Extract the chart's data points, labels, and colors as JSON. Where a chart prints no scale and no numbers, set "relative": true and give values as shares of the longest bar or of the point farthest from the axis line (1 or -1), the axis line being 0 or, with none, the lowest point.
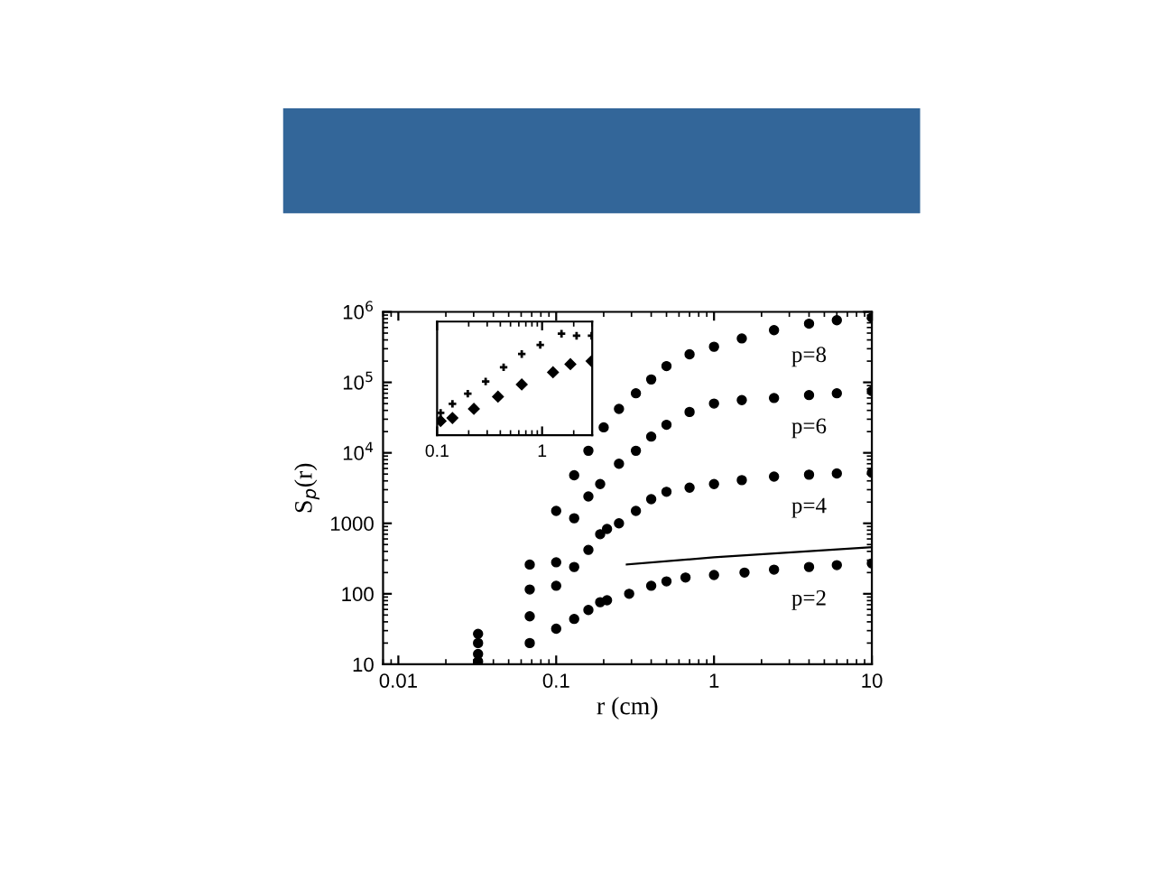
{
  "chart_data": [
    {
      "type": "scatter",
      "xlabel": "r (cm)",
      "ylabel": "S$_{p}$(r)",
      "log": "xy",
      "grid": false,
      "legend": "right",
      "xlim": [
        0.008,
        10
      ],
      "xticks": [
        0.01,
        0.1,
        1,
        10
      ],
      "ylim": [
        10,
        1000000
      ],
      "yticks": [
        10,
        100,
        1000,
        {
          "value": 10000,
          "label": "10$^{4}$"
        },
        {
          "value": 100000,
          "label": "10$^{5}$"
        },
        {
          "value": 1000000,
          "label": "10$^{6}$"
        }
      ],
      "series": [
        {
          "name": "p=2",
          "marker": "circle",
          "color": "#000000",
          "x": [
            0.032,
            0.068,
            0.1,
            0.13,
            0.16,
            0.19,
            0.21,
            0.29,
            0.4,
            0.5,
            0.66,
            1,
            1.56,
            2.4,
            4,
            6,
            10
          ],
          "values": [
            11,
            20,
            32,
            44,
            59,
            76,
            81,
            100,
            130,
            150,
            170,
            185,
            200,
            220,
            240,
            255,
            270
          ]
        },
        {
          "name": "p=4",
          "marker": "circle",
          "color": "#000000",
          "x": [
            0.032,
            0.068,
            0.1,
            0.13,
            0.16,
            0.19,
            0.21,
            0.25,
            0.32,
            0.4,
            0.5,
            0.7,
            1,
            1.5,
            2.4,
            4,
            6,
            10
          ],
          "values": [
            14,
            48,
            130,
            240,
            420,
            700,
            830,
            1000,
            1500,
            2200,
            2800,
            3200,
            3600,
            4100,
            4600,
            4900,
            5100,
            5200
          ]
        },
        {
          "name": "p=6",
          "marker": "circle",
          "color": "#000000",
          "x": [
            0.032,
            0.068,
            0.1,
            0.13,
            0.16,
            0.19,
            0.25,
            0.32,
            0.4,
            0.5,
            0.7,
            1,
            1.5,
            2.4,
            4,
            6,
            10
          ],
          "values": [
            20,
            115,
            280,
            1180,
            2400,
            3600,
            7000,
            10700,
            17000,
            25000,
            38000,
            50000,
            56000,
            60000,
            66000,
            70000,
            75000
          ]
        },
        {
          "name": "p=8",
          "marker": "circle",
          "color": "#000000",
          "x": [
            0.032,
            0.068,
            0.1,
            0.13,
            0.16,
            0.2,
            0.25,
            0.32,
            0.4,
            0.5,
            0.7,
            1,
            1.5,
            2.4,
            4,
            6,
            10
          ],
          "values": [
            27,
            260,
            1500,
            4800,
            10700,
            23000,
            42000,
            70000,
            110000,
            170000,
            250000,
            320000,
            420000,
            550000,
            680000,
            760000,
            830000
          ]
        },
        {
          "type": "line",
          "color": "#000000",
          "x": [
            0.28,
            1,
            10
          ],
          "values": [
            260,
            330,
            460
          ]
        }
      ]
    },
    {
      "type": "scatter",
      "relative": true,
      "log": "x",
      "tick_labels": "x",
      "grid": false,
      "xlim": [
        0.1,
        3
      ],
      "xticks": [
        0.1,
        1
      ],
      "series": [
        {
          "color": "#000000",
          "marker": "cross",
          "x": [
            0.108,
            0.14,
            0.196,
            0.29,
            0.43,
            0.64,
            0.96,
            1.53,
            2.13,
            2.96
          ],
          "values": [
            0.22,
            0.31,
            0.41,
            0.53,
            0.67,
            0.8,
            0.89,
            1.0,
            0.98,
            0.98
          ]
        },
        {
          "color": "#000000",
          "marker": "diamond",
          "x": [
            0.108,
            0.14,
            0.224,
            0.38,
            0.64,
            1.27,
            1.86,
            2.96
          ],
          "values": [
            0.14,
            0.17,
            0.26,
            0.38,
            0.5,
            0.62,
            0.7,
            0.73
          ]
        }
      ]
    }
  ]
}
